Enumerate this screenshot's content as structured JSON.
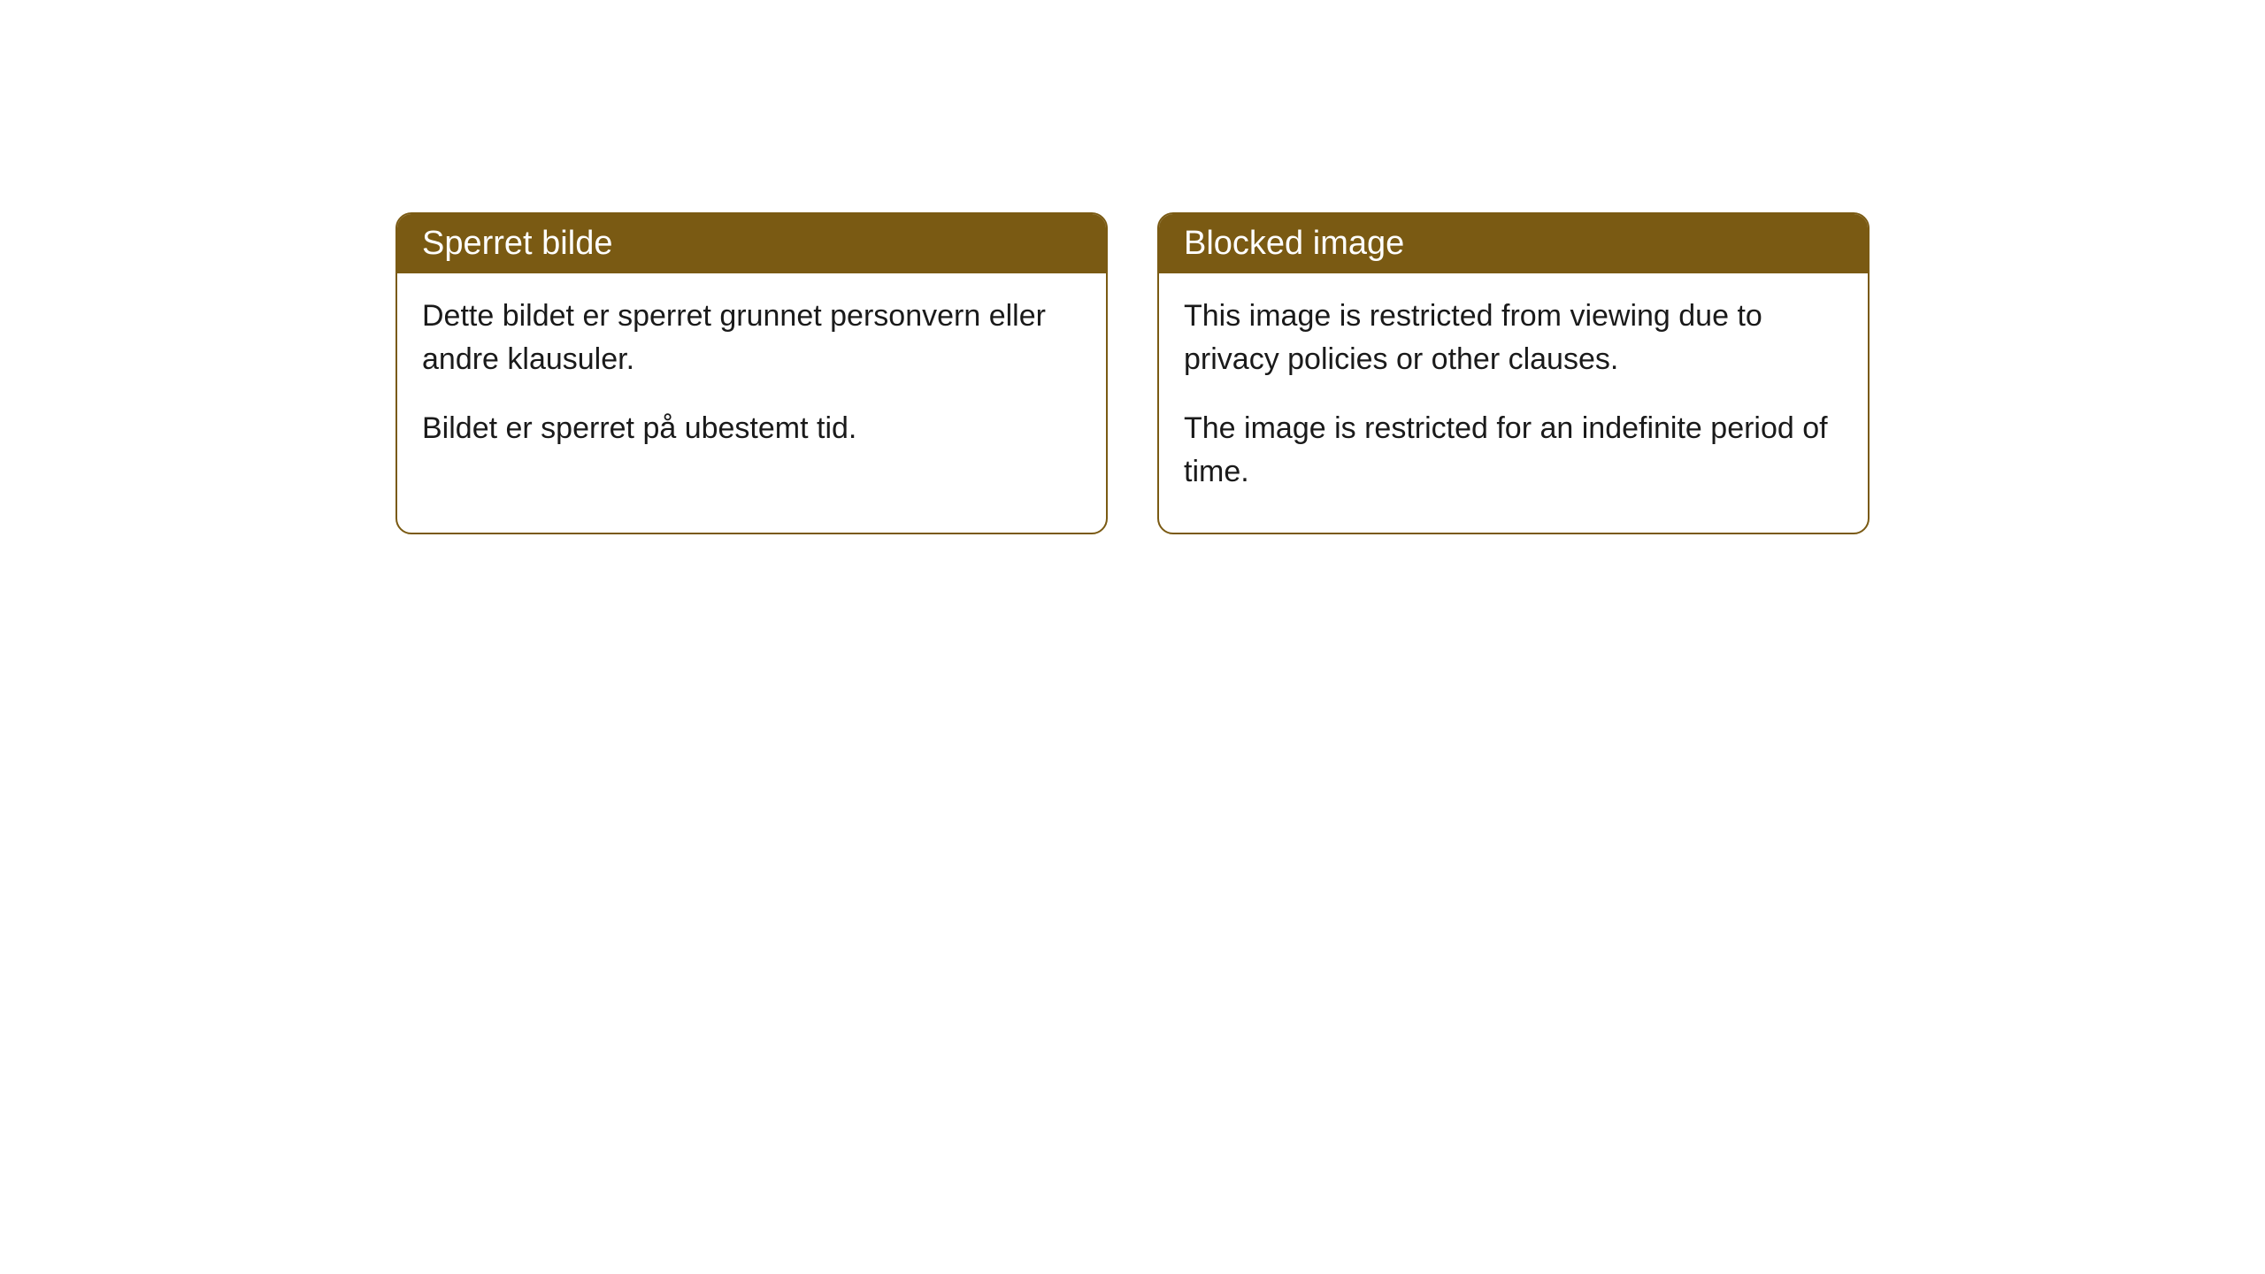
{
  "cards": [
    {
      "title": "Sperret bilde",
      "paragraph1": "Dette bildet er sperret grunnet personvern eller andre klausuler.",
      "paragraph2": "Bildet er sperret på ubestemt tid."
    },
    {
      "title": "Blocked image",
      "paragraph1": "This image is restricted from viewing due to privacy policies or other clauses.",
      "paragraph2": "The image is restricted for an indefinite period of time."
    }
  ],
  "colors": {
    "header_bg": "#7a5a13",
    "header_text": "#ffffff",
    "border": "#7a5a13",
    "body_bg": "#ffffff",
    "body_text": "#1a1a1a"
  }
}
